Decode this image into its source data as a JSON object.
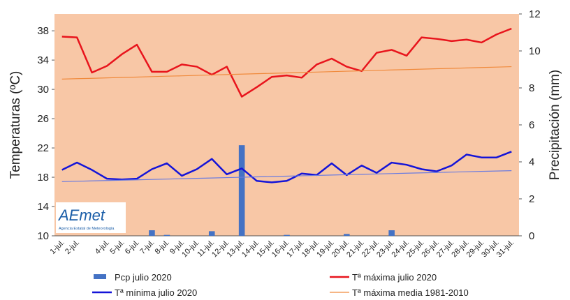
{
  "chart_data": {
    "type": "combo",
    "categories": [
      "1-jul.",
      "2-jul.",
      null,
      "4-jul.",
      "5-jul.",
      "6-jul.",
      "7-jul.",
      "8-jul.",
      "9-jul.",
      "10-jul.",
      "11-jul.",
      "12-jul.",
      "13-jul.",
      "14-jul.",
      "15-jul.",
      "16-jul.",
      "17-jul.",
      "18-jul.",
      "19-jul.",
      "20-jul.",
      "21-jul.",
      "22-jul.",
      "23-jul.",
      "24-jul.",
      "25-jul.",
      "26-jul.",
      "27-jul.",
      "28-jul.",
      "29-jul.",
      "30-jul.",
      "31-jul."
    ],
    "ylabel": "Temperaturas (ºC)",
    "y2label": "Precipitación (mm)",
    "ylim": [
      10,
      40.3
    ],
    "yticks": [
      10,
      14,
      18,
      22,
      26,
      30,
      34,
      38
    ],
    "y2lim": [
      0,
      12
    ],
    "y2ticks": [
      0,
      2,
      4,
      6,
      8,
      10,
      12
    ],
    "background": "#f8c7a6",
    "logo": {
      "title": "AEmet",
      "subtitle": "Agencia Estatal de Meteorología"
    },
    "series": [
      {
        "name": "Pcp julio 2020",
        "kind": "bar",
        "axis": "y2",
        "color": "#4472c4",
        "values": [
          0,
          0,
          0,
          0,
          0,
          0,
          0.3,
          0.05,
          0,
          0,
          0.25,
          0,
          4.9,
          0,
          0,
          0.05,
          0,
          0,
          0,
          0.1,
          0,
          0,
          0.3,
          0,
          0,
          0,
          0,
          0,
          0,
          0,
          0
        ]
      },
      {
        "name": "Tª máxima julio 2020",
        "kind": "line",
        "color": "#e8141c",
        "width": 2.5,
        "values": [
          37.2,
          37.1,
          32.3,
          33.2,
          34.8,
          36.1,
          32.4,
          32.4,
          33.4,
          33.1,
          32.0,
          33.1,
          29.0,
          30.3,
          31.7,
          31.9,
          31.6,
          33.4,
          34.2,
          33.1,
          32.5,
          35.0,
          35.4,
          34.6,
          37.1,
          36.9,
          36.6,
          36.8,
          36.4,
          37.5,
          38.3
        ]
      },
      {
        "name": "Tª mínima julio 2020",
        "kind": "line",
        "color": "#1414d8",
        "width": 2.5,
        "values": [
          19.0,
          20.0,
          19.0,
          17.8,
          17.7,
          17.8,
          19.1,
          19.9,
          18.2,
          19.1,
          20.5,
          18.4,
          19.2,
          17.5,
          17.3,
          17.5,
          18.5,
          18.3,
          19.9,
          18.3,
          19.6,
          18.6,
          20.0,
          19.7,
          19.1,
          18.8,
          19.6,
          21.1,
          20.7,
          20.7,
          21.5
        ]
      },
      {
        "name": "Tª máxima media 1981-2010",
        "kind": "line",
        "color": "#f08a3c",
        "width": 1.2,
        "values": [
          31.4,
          31.46,
          31.51,
          31.57,
          31.63,
          31.68,
          31.74,
          31.8,
          31.85,
          31.91,
          31.97,
          32.02,
          32.08,
          32.14,
          32.19,
          32.25,
          32.31,
          32.36,
          32.42,
          32.48,
          32.53,
          32.59,
          32.65,
          32.7,
          32.76,
          32.82,
          32.87,
          32.93,
          32.99,
          33.04,
          33.1
        ]
      },
      {
        "kind": "line",
        "color": "#6a7be0",
        "width": 1.2,
        "values": [
          17.4,
          17.45,
          17.5,
          17.55,
          17.6,
          17.65,
          17.7,
          17.75,
          17.8,
          17.85,
          17.9,
          17.95,
          18.0,
          18.05,
          18.1,
          18.15,
          18.2,
          18.25,
          18.3,
          18.35,
          18.4,
          18.45,
          18.5,
          18.55,
          18.6,
          18.65,
          18.7,
          18.75,
          18.8,
          18.85,
          18.9
        ]
      }
    ]
  }
}
